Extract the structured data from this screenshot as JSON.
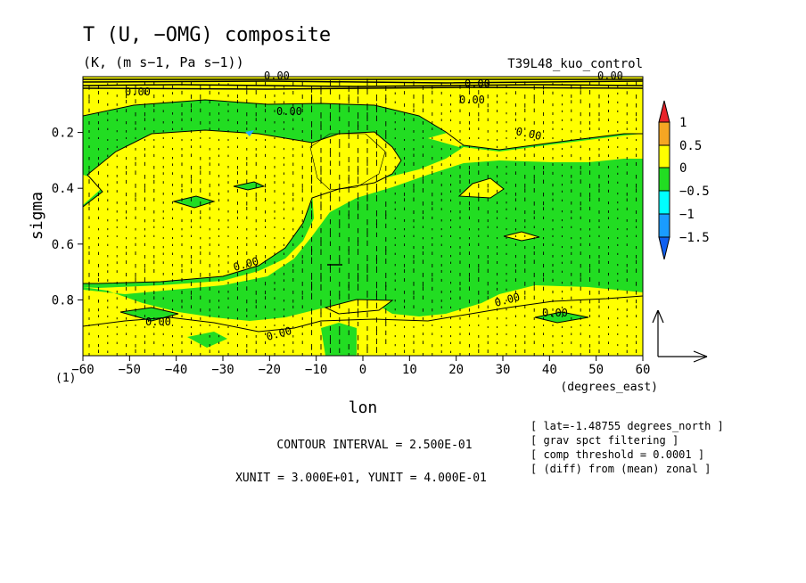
{
  "figure": {
    "title": "T (U, −OMG) composite",
    "units": "(K, (m s−1, Pa s−1))",
    "experiment": "T39L48_kuo_control",
    "panel_id": "(1)",
    "contour_interval": "CONTOUR INTERVAL = 2.500E-01",
    "vector_units": "XUNIT = 3.000E+01, YUNIT = 4.000E-01",
    "notes": [
      "[ lat=-1.48755 degrees_north ]",
      "[ grav spct filtering ]",
      "[ comp threshold = 0.0001 ]",
      "[ (diff) from (mean) zonal ]"
    ]
  },
  "chart_data": {
    "type": "heatmap",
    "title": "T (U, −OMG) composite",
    "xlabel": "lon",
    "xunit_label": "(degrees_east)",
    "ylabel": "sigma",
    "xlim": [
      -60,
      60
    ],
    "ylim": [
      1.0,
      0.0
    ],
    "y_inverted": true,
    "x_ticks": [
      -60,
      -50,
      -40,
      -30,
      -20,
      -10,
      0,
      10,
      20,
      30,
      40,
      50,
      60
    ],
    "x_tick_labels": [
      "−60",
      "−50",
      "−40",
      "−30",
      "−20",
      "−10",
      "0",
      "10",
      "20",
      "30",
      "40",
      "50",
      "60"
    ],
    "y_ticks": [
      0.2,
      0.4,
      0.6,
      0.8
    ],
    "y_tick_labels": [
      "0.2",
      "0.4",
      "0.6",
      "0.8"
    ],
    "colorbar": {
      "levels": [
        1,
        0.5,
        0,
        -0.5,
        -1,
        -1.5
      ],
      "labels": [
        "1",
        "0.5",
        "0",
        "−0.5",
        "−1",
        "−1.5"
      ],
      "colors": {
        "above_1": "#e8232a",
        "0.5_to_1": "#f5a623",
        "0_to_0.5": "#ffff00",
        "-0.5_to_0": "#22dd22",
        "-1_to_-0.5": "#00ffff",
        "-1.5_to_-1": "#1a9cff",
        "below_-1.5": "#1060f0"
      }
    },
    "contour_labels": [
      "0.00",
      "0.00",
      "0.00",
      "0.00",
      "0.00",
      "0.00",
      "0.00",
      "0.00",
      "0.00",
      "0.00",
      "0.00",
      "0.00"
    ],
    "regions": [
      {
        "sign": "positive",
        "description": "west",
        "lon_range": [
          -60,
          -10
        ],
        "sigma_range": [
          0.3,
          0.78
        ]
      },
      {
        "sign": "negative",
        "description": "central/east",
        "lon_range": [
          -10,
          60
        ],
        "sigma_range": [
          0.2,
          0.82
        ]
      },
      {
        "sign": "positive",
        "description": "upper",
        "lon_range": [
          -60,
          60
        ],
        "sigma_range": [
          0.02,
          0.2
        ]
      },
      {
        "sign": "positive",
        "description": "lower",
        "lon_range": [
          -60,
          60
        ],
        "sigma_range": [
          0.82,
          1.0
        ]
      }
    ],
    "vectors": {
      "quantity": "(U, -OMG)",
      "xunit": 30,
      "yunit": 0.4
    },
    "grid": false
  }
}
